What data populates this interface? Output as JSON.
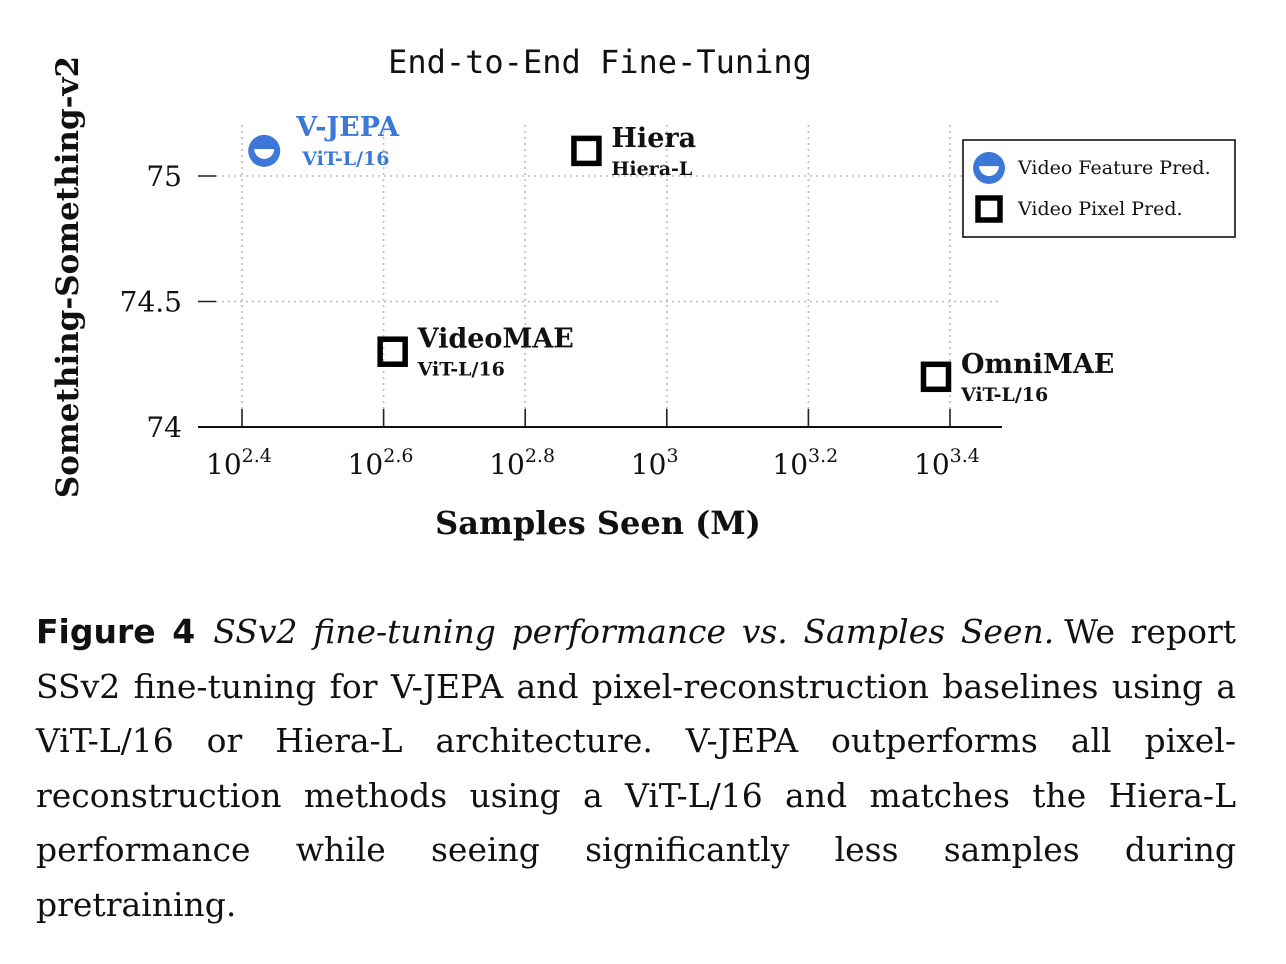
{
  "chart_data": {
    "type": "scatter",
    "title": "End-to-End Fine-Tuning",
    "xlabel": "Samples Seen (M)",
    "ylabel": "Something-Something-v2",
    "x_scale": "log10",
    "x_ticks": [
      {
        "base": "10",
        "exp": "2.4",
        "log": 2.4
      },
      {
        "base": "10",
        "exp": "2.6",
        "log": 2.6
      },
      {
        "base": "10",
        "exp": "2.8",
        "log": 2.8
      },
      {
        "base": "10",
        "exp": "3",
        "log": 3.0
      },
      {
        "base": "10",
        "exp": "3.2",
        "log": 3.2
      },
      {
        "base": "10",
        "exp": "3.4",
        "log": 3.4
      }
    ],
    "y_ticks": [
      {
        "label": "74",
        "value": 74
      },
      {
        "label": "74.5",
        "value": 74.5
      },
      {
        "label": "75",
        "value": 75
      }
    ],
    "ylim": [
      74,
      75
    ],
    "grid": true,
    "legend_position": "top-right",
    "legend": [
      {
        "label": "Video Feature Pred.",
        "marker": "half-circle",
        "color": "#3b78d8"
      },
      {
        "label": "Video Pixel Pred.",
        "marker": "square",
        "color": "#000000"
      }
    ],
    "points": [
      {
        "name": "V-JEPA",
        "sub": "ViT-L/16",
        "samples_seen_m": 270,
        "ssv2": 75.1,
        "marker": "half-circle",
        "color": "#3b78d8"
      },
      {
        "name": "Hiera",
        "sub": "Hiera-L",
        "samples_seen_m": 770,
        "ssv2": 75.1,
        "marker": "square",
        "color": "#000000"
      },
      {
        "name": "VideoMAE",
        "sub": "ViT-L/16",
        "samples_seen_m": 410,
        "ssv2": 74.3,
        "marker": "square",
        "color": "#000000"
      },
      {
        "name": "OmniMAE",
        "sub": "ViT-L/16",
        "samples_seen_m": 2400,
        "ssv2": 74.2,
        "marker": "square",
        "color": "#000000"
      }
    ]
  },
  "caption": {
    "label": "Figure 4",
    "italic": "SSv2 fine-tuning performance vs. Samples Seen.",
    "text": "We report SSv2 fine-tuning for V-JEPA and pixel-reconstruction baselines using a ViT-L/16 or Hiera-L architecture. V-JEPA outperforms all pixel-reconstruction methods using a ViT-L/16 and matches the Hiera-L performance while seeing significantly less samples during pretraining."
  }
}
